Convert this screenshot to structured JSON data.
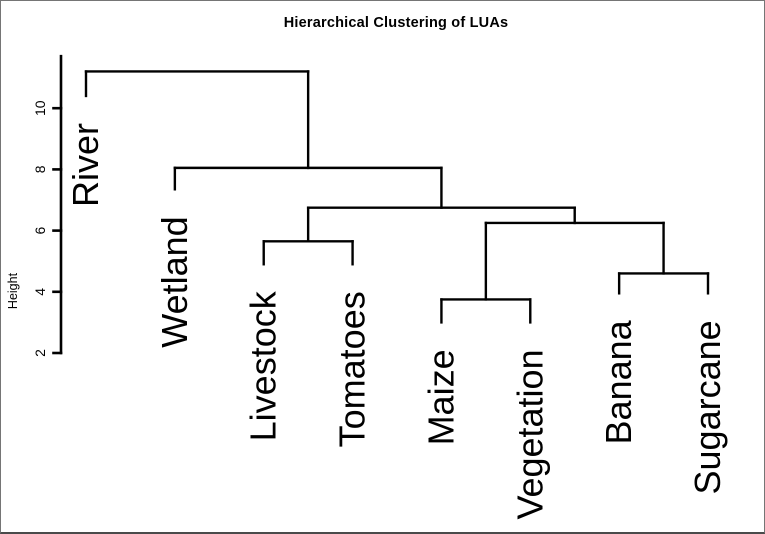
{
  "chart_data": {
    "type": "dendrogram",
    "title": "Hierarchical Clustering of LUAs",
    "ylabel": "Height",
    "y_ticks": [
      2,
      4,
      6,
      8,
      10
    ],
    "y_axis_range_shown": [
      2,
      11.7
    ],
    "grid": "off",
    "legend": "none",
    "line_color": "#000000",
    "background_color": "#ffffff",
    "leaves_in_order": [
      "River",
      "Wetland",
      "Livestock",
      "Tomatoes",
      "Maize",
      "Vegetation",
      "Banana",
      "Sugarcane"
    ],
    "merges": [
      {
        "members": [
          "Livestock",
          "Tomatoes"
        ],
        "height": 5.65
      },
      {
        "members": [
          "Maize",
          "Vegetation"
        ],
        "height": 3.75
      },
      {
        "members": [
          "Banana",
          "Sugarcane"
        ],
        "height": 4.6
      },
      {
        "members": [
          "Maize+Vegetation",
          "Banana+Sugarcane"
        ],
        "height": 6.25
      },
      {
        "members": [
          "Livestock+Tomatoes",
          "Maize+Vegetation+Banana+Sugarcane"
        ],
        "height": 6.75
      },
      {
        "members": [
          "Wetland",
          "Livestock+Tomatoes+Maize+Vegetation+Banana+Sugarcane"
        ],
        "height": 8.05
      },
      {
        "members": [
          "River",
          "all-others"
        ],
        "height": 11.2
      }
    ],
    "tree": {
      "height": 11.2,
      "children": [
        {
          "leaf": "River",
          "stem_bottom": 10.4
        },
        {
          "height": 8.05,
          "children": [
            {
              "leaf": "Wetland",
              "stem_bottom": 7.35
            },
            {
              "height": 6.75,
              "children": [
                {
                  "height": 5.65,
                  "children": [
                    {
                      "leaf": "Livestock",
                      "stem_bottom": 4.9
                    },
                    {
                      "leaf": "Tomatoes",
                      "stem_bottom": 4.9
                    }
                  ]
                },
                {
                  "height": 6.25,
                  "children": [
                    {
                      "height": 3.75,
                      "children": [
                        {
                          "leaf": "Maize",
                          "stem_bottom": 3.0
                        },
                        {
                          "leaf": "Vegetation",
                          "stem_bottom": 3.0
                        }
                      ]
                    },
                    {
                      "height": 4.6,
                      "children": [
                        {
                          "leaf": "Banana",
                          "stem_bottom": 3.95
                        },
                        {
                          "leaf": "Sugarcane",
                          "stem_bottom": 3.95
                        }
                      ]
                    }
                  ]
                }
              ]
            }
          ]
        }
      ]
    }
  }
}
